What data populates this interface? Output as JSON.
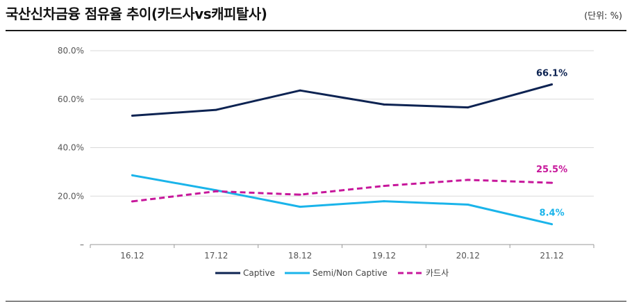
{
  "header": {
    "title": "국산신차금융 점유율 추이(카드사vs캐피탈사)",
    "unit": "(단위: %)"
  },
  "colors": {
    "captive": "#0d2352",
    "semi": "#1ab4ea",
    "card": "#c7179b",
    "grid": "#d9d9d9",
    "axis": "#999999"
  },
  "chart_data": {
    "type": "line",
    "title": "국산신차금융 점유율 추이(카드사vs캐피탈사)",
    "xlabel": "",
    "ylabel": "",
    "categories": [
      "16.12",
      "17.12",
      "18.12",
      "19.12",
      "20.12",
      "21.12"
    ],
    "ylim": [
      0,
      80
    ],
    "y_ticks": [
      {
        "value": 80,
        "label": "80.0%"
      },
      {
        "value": 60,
        "label": "60.0%"
      },
      {
        "value": 40,
        "label": "40.0%"
      },
      {
        "value": 20,
        "label": "20.0%"
      },
      {
        "value": 0,
        "label": "–"
      }
    ],
    "grid": true,
    "legend_position": "bottom",
    "series": [
      {
        "name": "Captive",
        "key": "captive",
        "style": "solid",
        "values": [
          53.2,
          55.6,
          63.6,
          57.8,
          56.6,
          66.1
        ],
        "end_label": "66.1%"
      },
      {
        "name": "Semi/Non Captive",
        "key": "semi",
        "style": "solid",
        "values": [
          28.6,
          22.4,
          15.6,
          17.9,
          16.5,
          8.4
        ],
        "end_label": "8.4%"
      },
      {
        "name": "카드사",
        "key": "card",
        "style": "dashed",
        "values": [
          17.8,
          22.0,
          20.6,
          24.2,
          26.7,
          25.5
        ],
        "end_label": "25.5%"
      }
    ]
  }
}
